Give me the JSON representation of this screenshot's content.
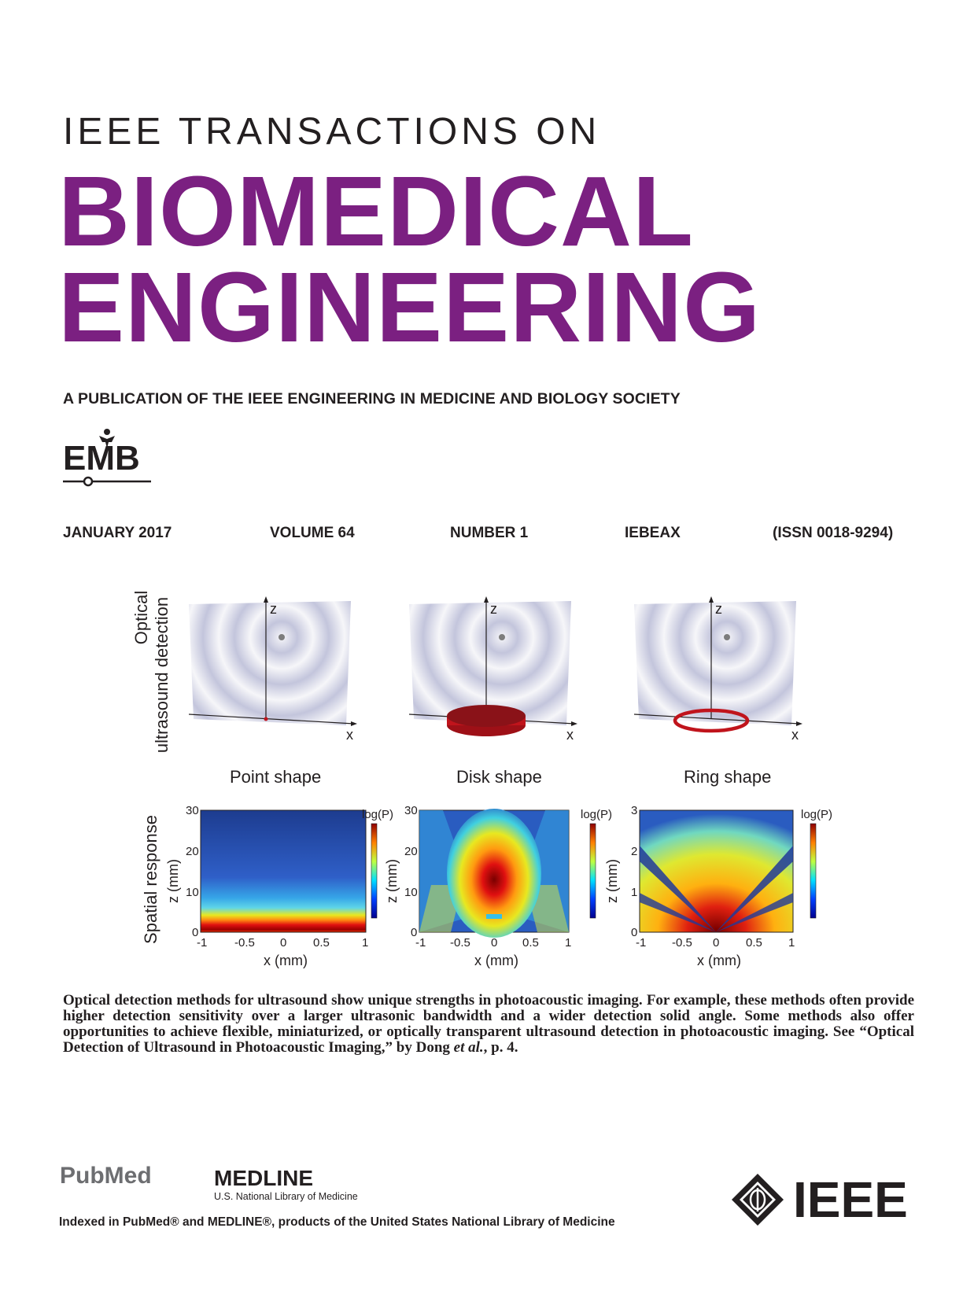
{
  "masthead": {
    "series": "IEEE TRANSACTIONS ON",
    "title_line1": "BIOMEDICAL",
    "title_line2": "ENGINEERING",
    "publication": "A PUBLICATION OF THE IEEE ENGINEERING IN MEDICINE AND BIOLOGY SOCIETY",
    "society_logo": "EMB"
  },
  "issue": {
    "date": "JANUARY 2017",
    "volume": "VOLUME 64",
    "number": "NUMBER 1",
    "coden": "IEBEAX",
    "issn": "(ISSN 0018-9294)"
  },
  "figure": {
    "row_top_label_1": "Optical",
    "row_top_label_2": "ultrasound detection",
    "row_bottom_label": "Spatial response",
    "panels": [
      {
        "name": "Point shape",
        "z_ticks": [
          "30",
          "20",
          "10",
          "0"
        ]
      },
      {
        "name": "Disk shape",
        "z_ticks": [
          "30",
          "20",
          "10",
          "0"
        ]
      },
      {
        "name": "Ring shape",
        "z_ticks": [
          "3",
          "2",
          "1",
          "0"
        ]
      }
    ],
    "x_ticks": [
      "-1",
      "-0.5",
      "0",
      "0.5",
      "1"
    ],
    "xlabel": "x (mm)",
    "ylabel": "z (mm)",
    "colorbar_label": "log(P)",
    "axis_x": "x",
    "axis_z": "z",
    "colors": {
      "accent": "#7b2081",
      "red_detector": "#c0141c"
    }
  },
  "caption": {
    "text_before": "Optical detection methods for ultrasound show unique strengths in photoacoustic imaging. For example, these methods often provide higher detection sensitivity over a larger ultrasonic bandwidth and a wider detection solid angle. Some methods also offer opportunities to achieve flexible, miniaturized, or optically transparent ultrasound detection in photoacoustic imaging. See “Optical Detection of Ultrasound in Photoacoustic Imaging,” by Dong ",
    "text_italic": "et al.",
    "text_after": ", p. 4."
  },
  "footer": {
    "pubmed": "PubMed",
    "medline_title": "MEDLINE",
    "medline_sub": "U.S. National Library of Medicine",
    "indexed": "Indexed in PubMed® and MEDLINE®, products of the United States National Library of Medicine",
    "ieee": "IEEE"
  }
}
